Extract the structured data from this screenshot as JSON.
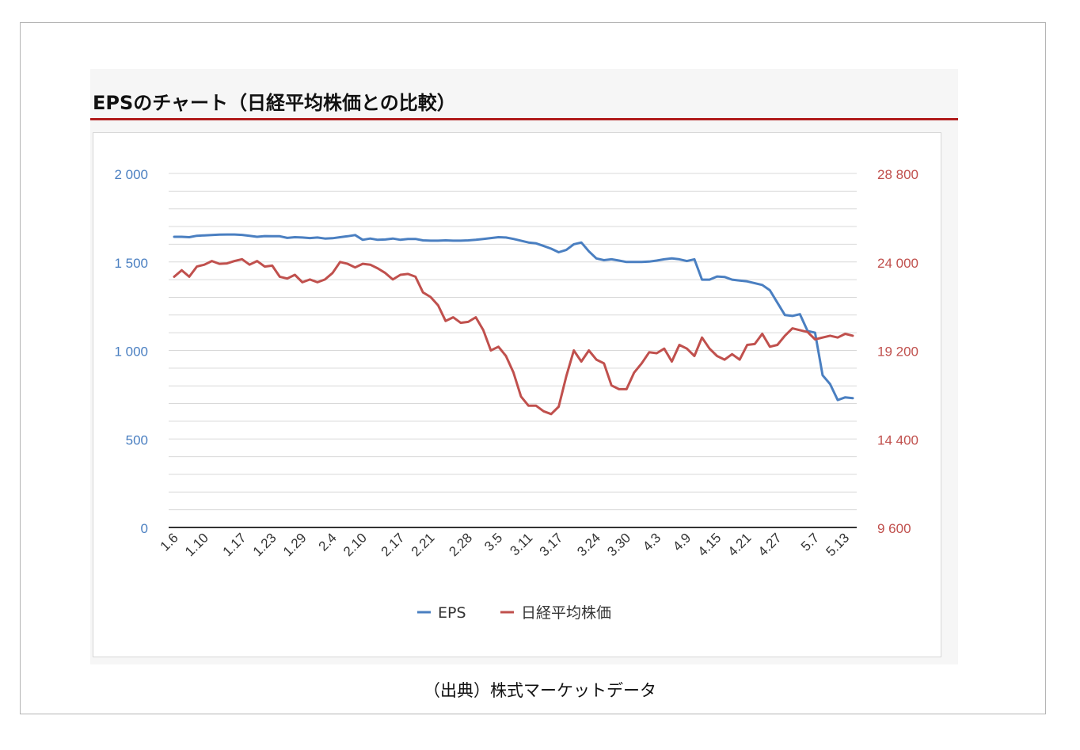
{
  "title": "EPSのチャート（日経平均株価との比較）",
  "source": "（出典）株式マーケットデータ",
  "colors": {
    "title_rule": "#b01c1c",
    "eps": "#4a7fc1",
    "nikkei": "#c0504d",
    "grid": "#d9d9d9",
    "axis": "#333333"
  },
  "chart_data": {
    "type": "line",
    "title": "",
    "legend_position": "bottom",
    "grid": true,
    "x": [
      "1.6",
      "1.7",
      "1.8",
      "1.9",
      "1.10",
      "1.13",
      "1.14",
      "1.15",
      "1.16",
      "1.17",
      "1.20",
      "1.21",
      "1.22",
      "1.23",
      "1.24",
      "1.27",
      "1.28",
      "1.29",
      "1.30",
      "1.31",
      "2.3",
      "2.4",
      "2.5",
      "2.6",
      "2.7",
      "2.10",
      "2.11",
      "2.12",
      "2.13",
      "2.14",
      "2.17",
      "2.18",
      "2.19",
      "2.20",
      "2.21",
      "2.24",
      "2.25",
      "2.26",
      "2.27",
      "2.28",
      "3.2",
      "3.3",
      "3.4",
      "3.5",
      "3.6",
      "3.9",
      "3.10",
      "3.11",
      "3.12",
      "3.13",
      "3.16",
      "3.17",
      "3.18",
      "3.19",
      "3.20",
      "3.23",
      "3.24",
      "3.25",
      "3.26",
      "3.27",
      "3.30",
      "3.31",
      "4.1",
      "4.2",
      "4.3",
      "4.6",
      "4.7",
      "4.8",
      "4.9",
      "4.10",
      "4.13",
      "4.14",
      "4.15",
      "4.16",
      "4.17",
      "4.20",
      "4.21",
      "4.22",
      "4.23",
      "4.24",
      "4.27",
      "4.28",
      "4.29",
      "4.30",
      "5.1",
      "5.7",
      "5.8",
      "5.11",
      "5.12",
      "5.13",
      "5.14"
    ],
    "x_tick_labels": [
      "1.6",
      "1.10",
      "1.17",
      "1.23",
      "1.29",
      "2.4",
      "2.10",
      "2.17",
      "2.21",
      "2.28",
      "3.5",
      "3.11",
      "3.17",
      "3.24",
      "3.30",
      "4.3",
      "4.9",
      "4.15",
      "4.21",
      "4.27",
      "5.7",
      "5.13"
    ],
    "y_left": {
      "ticks": [
        "0",
        "500",
        "1 000",
        "1 500",
        "2 000"
      ],
      "min": 0,
      "max": 2000
    },
    "y_right": {
      "ticks": [
        "9 600",
        "14 400",
        "19 200",
        "24 000",
        "28 800"
      ],
      "min": 9600,
      "max": 28800
    },
    "series": [
      {
        "name": "EPS",
        "axis": "left",
        "values": [
          1642,
          1642,
          1640,
          1648,
          1650,
          1652,
          1654,
          1655,
          1655,
          1653,
          1648,
          1642,
          1646,
          1645,
          1645,
          1636,
          1640,
          1638,
          1635,
          1638,
          1632,
          1634,
          1640,
          1645,
          1652,
          1625,
          1632,
          1625,
          1627,
          1632,
          1625,
          1630,
          1630,
          1622,
          1620,
          1620,
          1622,
          1620,
          1620,
          1622,
          1625,
          1630,
          1635,
          1640,
          1638,
          1630,
          1620,
          1610,
          1605,
          1590,
          1575,
          1555,
          1568,
          1600,
          1610,
          1560,
          1520,
          1510,
          1515,
          1508,
          1500,
          1500,
          1500,
          1502,
          1508,
          1515,
          1520,
          1515,
          1505,
          1515,
          1400,
          1400,
          1418,
          1415,
          1400,
          1395,
          1390,
          1380,
          1370,
          1340,
          1270,
          1200,
          1195,
          1205,
          1110,
          1100,
          860,
          810,
          720,
          735,
          730
        ]
      },
      {
        "name": "日経平均株価",
        "axis": "right",
        "values": [
          23200,
          23550,
          23200,
          23750,
          23850,
          24050,
          23900,
          23920,
          24050,
          24150,
          23850,
          24050,
          23750,
          23800,
          23200,
          23100,
          23300,
          22900,
          23050,
          22900,
          23050,
          23400,
          24000,
          23900,
          23700,
          23900,
          23850,
          23650,
          23400,
          23050,
          23300,
          23350,
          23200,
          22350,
          22100,
          21650,
          20800,
          21000,
          20700,
          20750,
          21000,
          20300,
          19200,
          19400,
          18900,
          18000,
          16700,
          16200,
          16200,
          15900,
          15750,
          16150,
          17800,
          19200,
          18600,
          19200,
          18700,
          18500,
          17300,
          17100,
          17100,
          18000,
          18500,
          19100,
          19050,
          19300,
          18600,
          19500,
          19300,
          18900,
          19900,
          19300,
          18900,
          18700,
          19000,
          18700,
          19500,
          19550,
          20100,
          19400,
          19500,
          20000,
          20400,
          20300,
          20200,
          19800,
          19900,
          20000,
          19900,
          20100,
          20000
        ]
      }
    ]
  },
  "legend": [
    {
      "label": "EPS",
      "color": "#4a7fc1"
    },
    {
      "label": "日経平均株価",
      "color": "#c0504d"
    }
  ]
}
